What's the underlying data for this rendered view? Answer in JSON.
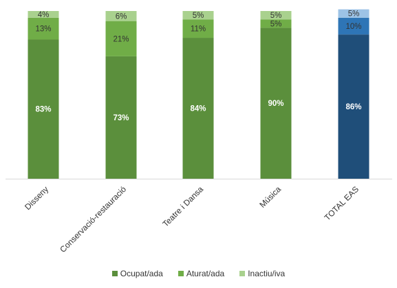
{
  "chart_data": {
    "type": "bar",
    "stacked": true,
    "categories": [
      "Disseny",
      "Conservació-restauració",
      "Teatre i Dansa",
      "Música",
      "TOTAL EAS"
    ],
    "series": [
      {
        "name": "Ocupat/ada",
        "values": [
          83,
          73,
          84,
          90,
          86
        ],
        "labels": [
          "83%",
          "73%",
          "84%",
          "90%",
          "86%"
        ]
      },
      {
        "name": "Aturat/ada",
        "values": [
          13,
          21,
          11,
          5,
          10
        ],
        "labels": [
          "13%",
          "21%",
          "11%",
          "5%",
          "10%"
        ]
      },
      {
        "name": "Inactiu/iva",
        "values": [
          4,
          6,
          5,
          5,
          5
        ],
        "labels": [
          "4%",
          "6%",
          "5%",
          "5%",
          "5%"
        ]
      }
    ],
    "colors": {
      "default": [
        "#5b8f3c",
        "#70ad47",
        "#a9d18e"
      ],
      "highlight": [
        "#1f4e79",
        "#2e75b6",
        "#9dc3e6"
      ]
    },
    "highlight_category": "TOTAL EAS",
    "label_colors": {
      "Ocupat/ada": "#ffffff",
      "Aturat/ada": "#333333",
      "Inactiu/iva": "#333333"
    },
    "ylim": [
      0,
      100
    ],
    "grid": false,
    "legend_position": "bottom"
  }
}
